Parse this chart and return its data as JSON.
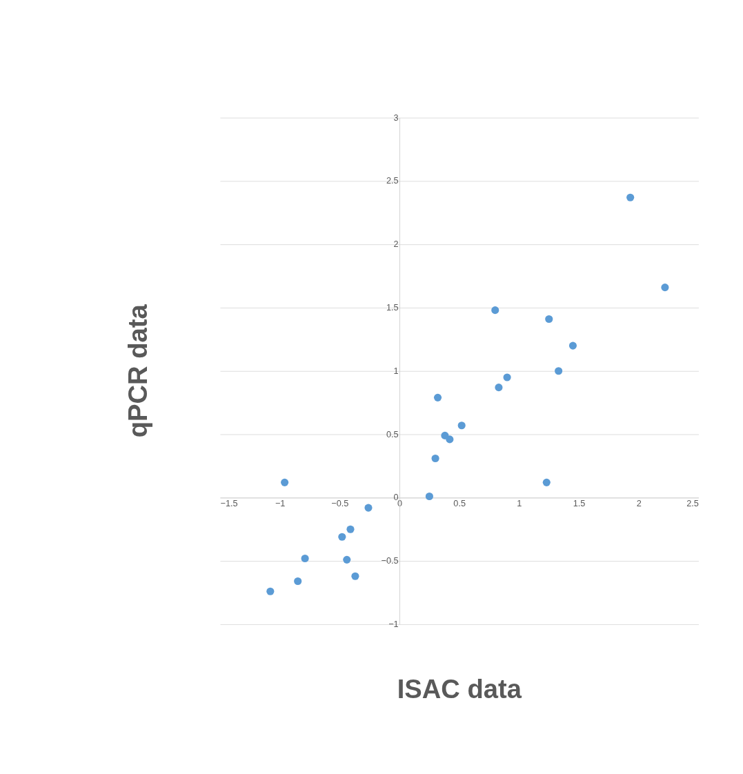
{
  "chart_data": {
    "type": "scatter",
    "xlabel": "ISAC data",
    "ylabel": "qPCR data",
    "x": [
      1.93,
      2.22,
      0.8,
      1.25,
      1.45,
      1.33,
      0.9,
      0.83,
      0.32,
      0.52,
      0.38,
      0.42,
      0.3,
      1.23,
      0.25,
      -0.96,
      -0.26,
      -0.41,
      -0.48,
      -0.79,
      -0.44,
      -0.37,
      -0.85,
      -1.08
    ],
    "series": [
      {
        "color": "#5b9bd5",
        "values": [
          2.37,
          1.66,
          1.48,
          1.41,
          1.2,
          1.0,
          0.95,
          0.87,
          0.79,
          0.57,
          0.49,
          0.46,
          0.31,
          0.12,
          0.01,
          0.12,
          -0.08,
          -0.25,
          -0.31,
          -0.48,
          -0.49,
          -0.62,
          -0.66,
          -0.74
        ]
      }
    ],
    "xlim": [
      -1.5,
      2.5
    ],
    "xticks": [
      -1.5,
      -1,
      -0.5,
      0,
      0.5,
      1,
      1.5,
      2,
      2.5
    ],
    "ylim": [
      -1,
      3
    ],
    "yticks": [
      -1,
      -0.5,
      0,
      0.5,
      1,
      1.5,
      2,
      2.5,
      3
    ],
    "grid": "y",
    "marker": "circle"
  }
}
